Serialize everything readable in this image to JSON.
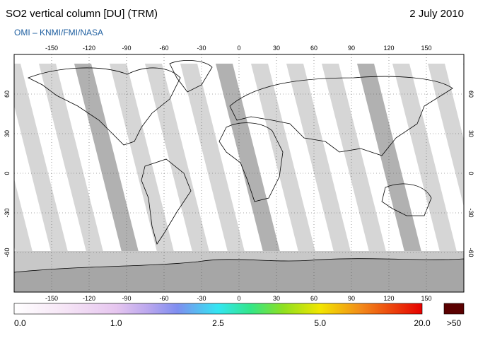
{
  "header": {
    "title": "SO2 vertical column [DU] (TRM)",
    "date": "2 July 2010",
    "subtitle": "OMI  –  KNMI/FMI/NASA"
  },
  "map": {
    "lon_ticks": [
      -150,
      -120,
      -90,
      -60,
      -30,
      0,
      30,
      60,
      90,
      120,
      150
    ],
    "lat_ticks": [
      60,
      30,
      0,
      -30,
      -60
    ]
  },
  "colorbar": {
    "labels": [
      "0.0",
      "1.0",
      "2.5",
      "5.0",
      "20.0"
    ],
    "overflow": ">50"
  }
}
